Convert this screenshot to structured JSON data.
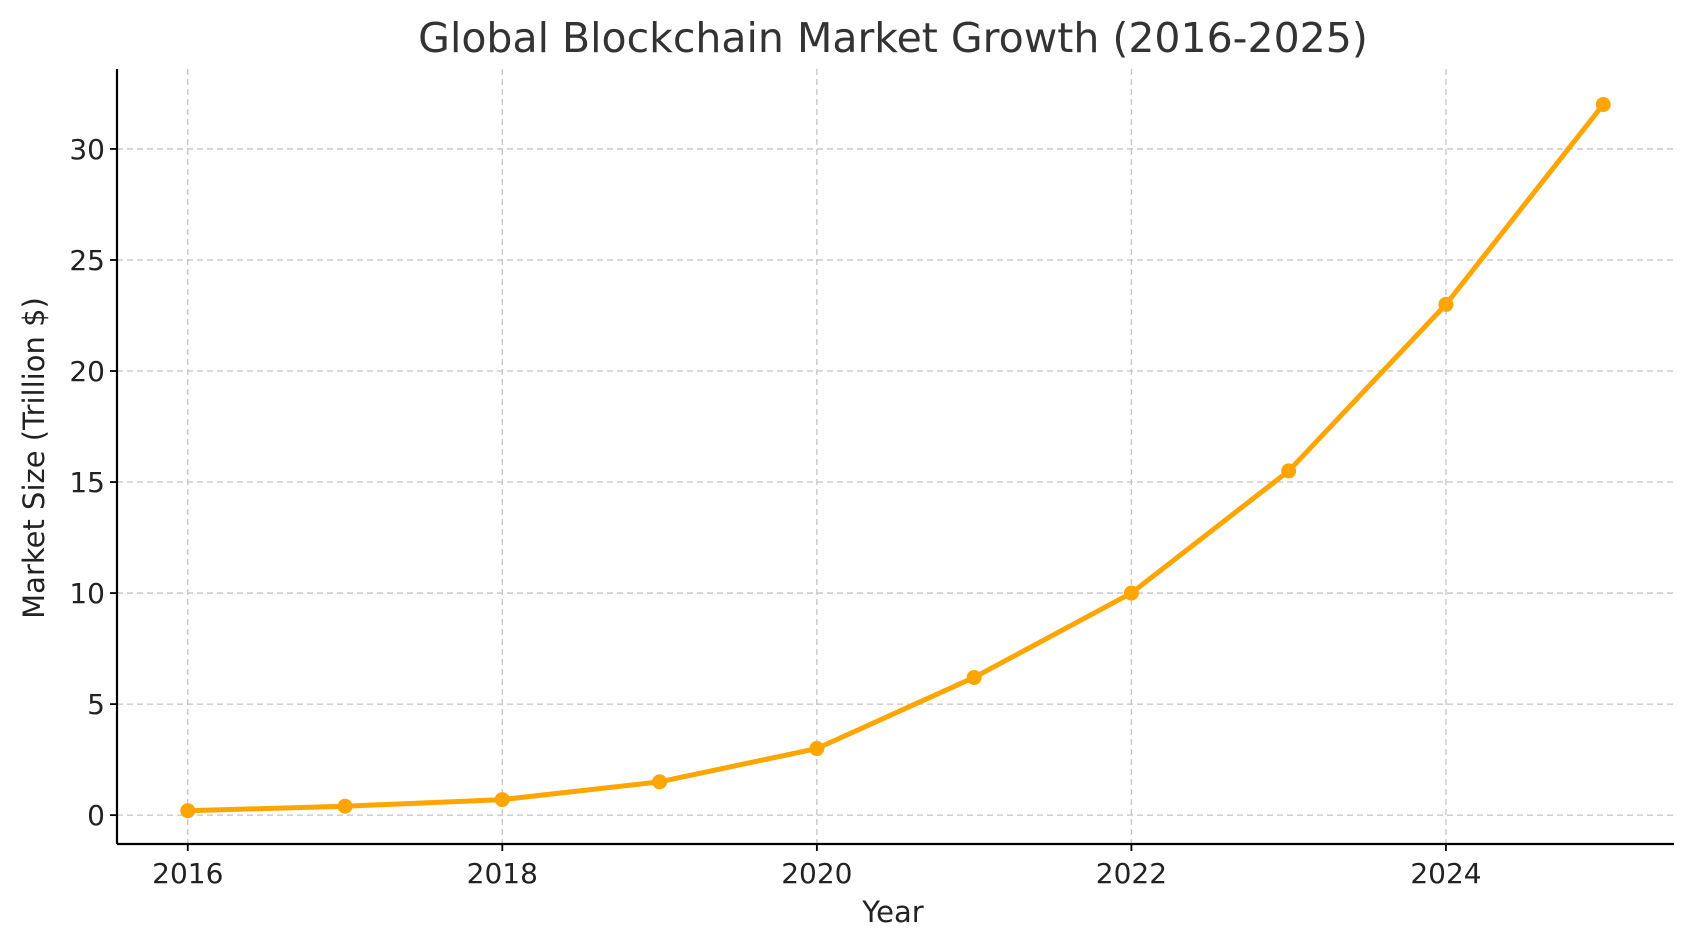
{
  "chart_data": {
    "type": "line",
    "title": "Global Blockchain Market Growth (2016-2025)",
    "xlabel": "Year",
    "ylabel": "Market Size (Trillion $)",
    "x": [
      2016,
      2017,
      2018,
      2019,
      2020,
      2021,
      2022,
      2023,
      2024,
      2025
    ],
    "series": [
      {
        "values": [
          0.2,
          0.4,
          0.7,
          1.5,
          3.0,
          6.2,
          10.0,
          15.5,
          23.0,
          32.0
        ],
        "color": "#FFA500",
        "marker": "circle"
      }
    ],
    "xlim": [
      2015.55,
      2025.45
    ],
    "ylim": [
      -1.3,
      33.6
    ],
    "xticks": [
      2016,
      2018,
      2020,
      2022,
      2024
    ],
    "xtick_labels": [
      "2016",
      "2018",
      "2020",
      "2022",
      "2024"
    ],
    "yticks": [
      0,
      5,
      10,
      15,
      20,
      25,
      30
    ],
    "ytick_labels": [
      "0",
      "5",
      "10",
      "15",
      "20",
      "25",
      "30"
    ],
    "grid": true,
    "legend": false
  }
}
